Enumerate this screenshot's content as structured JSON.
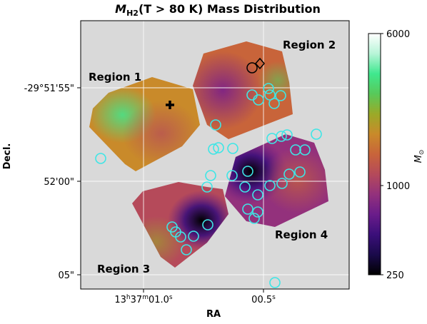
{
  "chart_data": {
    "type": "heatmap",
    "title_main": "M",
    "title_sub": "H2",
    "title_rest": "(T > 80 K) Mass Distribution",
    "xlabel": "RA",
    "ylabel": "Decl.",
    "x_ticks": [
      {
        "ra_arcsec_offset": 0.0,
        "parts": [
          {
            "t": "13"
          },
          {
            "t": "h",
            "sup": true
          },
          {
            "t": "37"
          },
          {
            "t": "m",
            "sup": true
          },
          {
            "t": "01.0"
          },
          {
            "t": "s",
            "sup": true
          }
        ]
      },
      {
        "ra_arcsec_offset": 0.5,
        "parts": [
          {
            "t": "00.5"
          },
          {
            "t": "s",
            "sup": true
          }
        ]
      }
    ],
    "y_ticks": [
      {
        "label": "-29°51'55\""
      },
      {
        "label": "52'00\""
      },
      {
        "label": "05\""
      }
    ],
    "colorbar": {
      "label_main": "M",
      "label_sub": "⊙",
      "scale": "log",
      "min": 250,
      "max": 6000,
      "ticks": [
        {
          "value": 6000,
          "label": "6000"
        },
        {
          "value": 1000,
          "label": "1000"
        },
        {
          "value": 250,
          "label": "250"
        }
      ],
      "colors": [
        "#000000",
        "#1a0a4a",
        "#3b0f7a",
        "#6a1c8a",
        "#93317c",
        "#b54a5a",
        "#c8643a",
        "#c98a2a",
        "#9aaa28",
        "#58c95a",
        "#3fe88e",
        "#b8f5d8",
        "#ffffff"
      ]
    },
    "regions": [
      {
        "label": "Region 1"
      },
      {
        "label": "Region 2"
      },
      {
        "label": "Region 3"
      },
      {
        "label": "Region 4"
      }
    ],
    "grid": true,
    "background_color": "#d9d9d9",
    "circle_color": "#3ee6e6"
  }
}
